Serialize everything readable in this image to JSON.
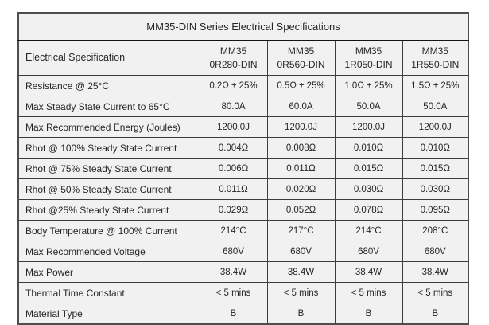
{
  "title": "MM35-DIN Series Electrical Specifications",
  "table": {
    "spec_header": "Electrical Specification",
    "columns": [
      {
        "line1": "MM35",
        "line2": "0R280-DIN"
      },
      {
        "line1": "MM35",
        "line2": "0R560-DIN"
      },
      {
        "line1": "MM35",
        "line2": "1R050-DIN"
      },
      {
        "line1": "MM35",
        "line2": "1R550-DIN"
      }
    ],
    "rows": [
      {
        "label": "Resistance @ 25°C",
        "values": [
          "0.2Ω ± 25%",
          "0.5Ω ± 25%",
          "1.0Ω ± 25%",
          "1.5Ω ± 25%"
        ]
      },
      {
        "label": "Max Steady State Current to 65°C",
        "values": [
          "80.0A",
          "60.0A",
          "50.0A",
          "50.0A"
        ]
      },
      {
        "label": "Max Recommended Energy (Joules)",
        "values": [
          "1200.0J",
          "1200.0J",
          "1200.0J",
          "1200.0J"
        ]
      },
      {
        "label": "Rhot @ 100% Steady State Current",
        "values": [
          "0.004Ω",
          "0.008Ω",
          "0.010Ω",
          "0.010Ω"
        ]
      },
      {
        "label": "Rhot @ 75% Steady State Current",
        "values": [
          "0.006Ω",
          "0.011Ω",
          "0.015Ω",
          "0.015Ω"
        ]
      },
      {
        "label": "Rhot @ 50% Steady State Current",
        "values": [
          "0.011Ω",
          "0.020Ω",
          "0.030Ω",
          "0.030Ω"
        ]
      },
      {
        "label": "Rhot @25% Steady State Current",
        "values": [
          "0.029Ω",
          "0.052Ω",
          "0.078Ω",
          "0.095Ω"
        ]
      },
      {
        "label": "Body Temperature @ 100% Current",
        "values": [
          "214°C",
          "217°C",
          "214°C",
          "208°C"
        ]
      },
      {
        "label": "Max Recommended Voltage",
        "values": [
          "680V",
          "680V",
          "680V",
          "680V"
        ]
      },
      {
        "label": "Max Power",
        "values": [
          "38.4W",
          "38.4W",
          "38.4W",
          "38.4W"
        ]
      },
      {
        "label": "Thermal Time Constant",
        "values": [
          "< 5 mins",
          "< 5 mins",
          "< 5 mins",
          "< 5 mins"
        ]
      },
      {
        "label": "Material Type",
        "values": [
          "B",
          "B",
          "B",
          "B"
        ]
      }
    ]
  },
  "colors": {
    "page_background": "#ffffff",
    "cell_background": "#f1f1f1",
    "border": "#3d3d3d",
    "text": "#262626"
  }
}
